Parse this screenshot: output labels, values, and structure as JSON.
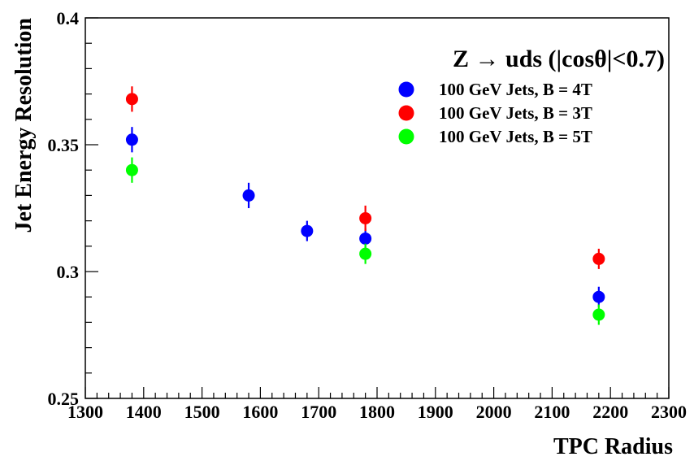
{
  "chart_data": {
    "type": "scatter",
    "xlabel": "TPC Radius",
    "ylabel": "Jet Energy Resolution",
    "xlim": [
      1300,
      2300
    ],
    "ylim": [
      0.25,
      0.4
    ],
    "x_ticks": [
      1300,
      1400,
      1500,
      1600,
      1700,
      1800,
      1900,
      2000,
      2100,
      2200,
      2300
    ],
    "x_tick_labels": [
      "1300",
      "1400",
      "1500",
      "1600",
      "1700",
      "1800",
      "1900",
      "2000",
      "2100",
      "2200",
      "2300"
    ],
    "y_ticks": [
      0.25,
      0.3,
      0.35,
      0.4
    ],
    "y_tick_labels": [
      "0.25",
      "0.3",
      "0.35",
      "0.4"
    ],
    "grid": false,
    "legend": {
      "title": "Z → uds (|cosθ|<0.7)",
      "placement": "top-right"
    },
    "series": [
      {
        "name": "100 GeV Jets, B = 4T",
        "color": "#0000ff",
        "x": [
          1380,
          1580,
          1680,
          1780,
          2180
        ],
        "y": [
          0.352,
          0.33,
          0.316,
          0.313,
          0.29
        ],
        "yerr": [
          0.005,
          0.005,
          0.004,
          0.004,
          0.004
        ]
      },
      {
        "name": "100 GeV Jets, B = 3T",
        "color": "#ff0000",
        "x": [
          1380,
          1780,
          2180
        ],
        "y": [
          0.368,
          0.321,
          0.305
        ],
        "yerr": [
          0.005,
          0.005,
          0.004
        ]
      },
      {
        "name": "100 GeV Jets, B = 5T",
        "color": "#00ff00",
        "x": [
          1380,
          1780,
          2180
        ],
        "y": [
          0.34,
          0.307,
          0.283
        ],
        "yerr": [
          0.005,
          0.004,
          0.004
        ]
      }
    ]
  }
}
